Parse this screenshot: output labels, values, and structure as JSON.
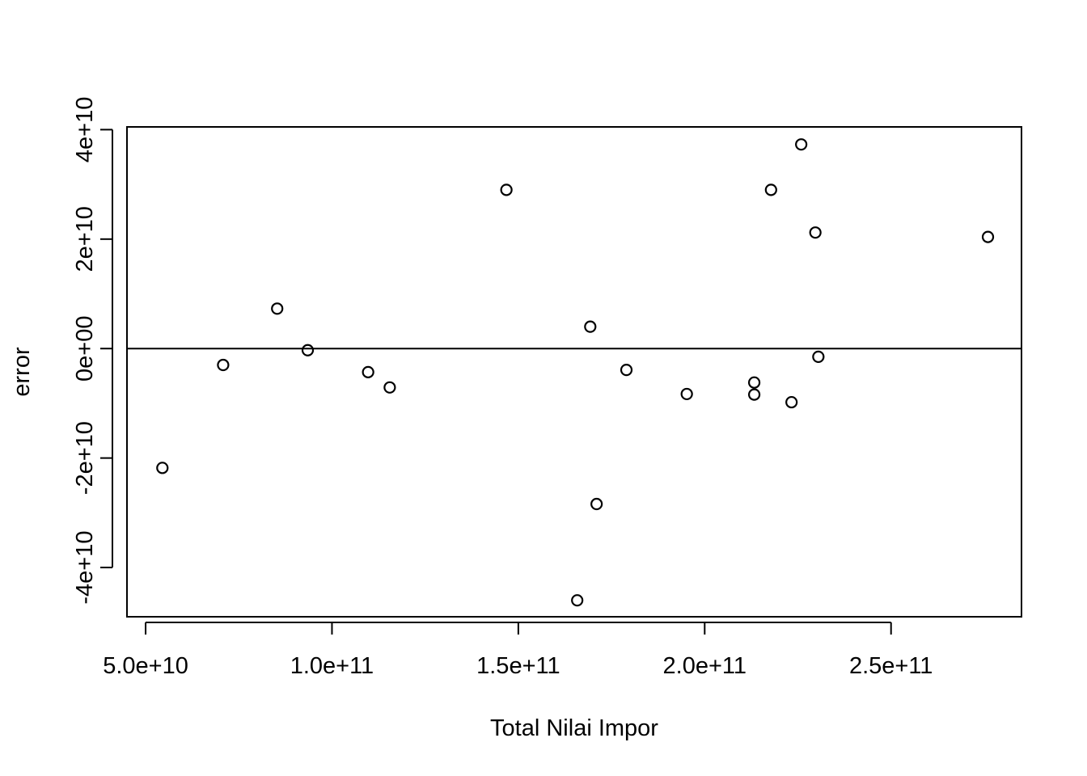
{
  "chart_data": {
    "type": "scatter",
    "title": "",
    "xlabel": "Total Nilai Impor",
    "ylabel": "error",
    "xlim": [
      45000000000,
      285000000000
    ],
    "ylim": [
      -49000000000,
      40500000000
    ],
    "x_ticks": [
      50000000000,
      100000000000,
      150000000000,
      200000000000,
      250000000000
    ],
    "x_tick_labels": [
      "5.0e+10",
      "1.0e+11",
      "1.5e+11",
      "2.0e+11",
      "2.5e+11"
    ],
    "y_ticks": [
      -40000000000,
      -20000000000,
      0,
      20000000000,
      40000000000
    ],
    "y_tick_labels": [
      "-4e+10",
      "-2e+10",
      "0e+00",
      "2e+10",
      "4e+10"
    ],
    "reference_line_y": 0,
    "grid": false,
    "series": [
      {
        "points": [
          {
            "x": 54500000000,
            "y": -21800000000
          },
          {
            "x": 70800000000,
            "y": -3000000000
          },
          {
            "x": 85300000000,
            "y": 7300000000
          },
          {
            "x": 93500000000,
            "y": -300000000
          },
          {
            "x": 109700000000,
            "y": -4300000000
          },
          {
            "x": 115500000000,
            "y": -7100000000
          },
          {
            "x": 146800000000,
            "y": 29000000000
          },
          {
            "x": 165800000000,
            "y": -46000000000
          },
          {
            "x": 169300000000,
            "y": 4000000000
          },
          {
            "x": 171000000000,
            "y": -28400000000
          },
          {
            "x": 179000000000,
            "y": -3900000000
          },
          {
            "x": 195200000000,
            "y": -8300000000
          },
          {
            "x": 213300000000,
            "y": -6200000000
          },
          {
            "x": 213300000000,
            "y": -8400000000
          },
          {
            "x": 217800000000,
            "y": 29000000000
          },
          {
            "x": 223300000000,
            "y": -9800000000
          },
          {
            "x": 225900000000,
            "y": 37300000000
          },
          {
            "x": 229700000000,
            "y": 21200000000
          },
          {
            "x": 230500000000,
            "y": -1500000000
          },
          {
            "x": 276000000000,
            "y": 20400000000
          }
        ]
      }
    ]
  }
}
